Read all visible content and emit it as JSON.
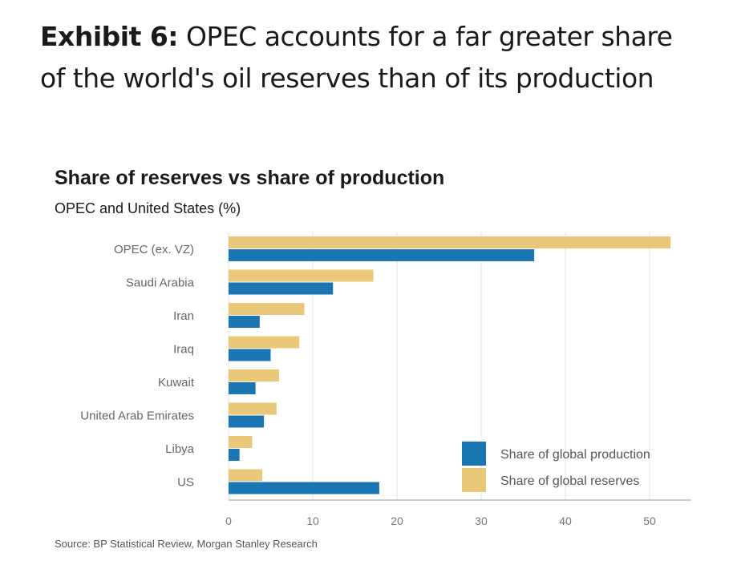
{
  "exhibit": {
    "lead": "Exhibit 6:",
    "text": " OPEC accounts for a far greater share of the world's oil reserves than of its production"
  },
  "source": "Source: BP Statistical Review, Morgan Stanley Research",
  "colors": {
    "production": "#1a75b3",
    "reserves": "#eac87a",
    "grid": "#e3e3e3",
    "axis": "#999999"
  },
  "chart_data": {
    "type": "bar",
    "orientation": "horizontal",
    "title": "Share of reserves vs share of production",
    "subtitle": "OPEC and United States (%)",
    "categories": [
      "OPEC (ex. VZ)",
      "Saudi Arabia",
      "Iran",
      "Iraq",
      "Kuwait",
      "United Arab Emirates",
      "Libya",
      "US"
    ],
    "series": [
      {
        "name": "Share of global reserves",
        "values": [
          52.5,
          17.2,
          9.0,
          8.4,
          6.0,
          5.7,
          2.8,
          4.0
        ]
      },
      {
        "name": "Share of global production",
        "values": [
          36.3,
          12.4,
          3.7,
          5.0,
          3.2,
          4.2,
          1.3,
          17.9
        ]
      }
    ],
    "xlim": [
      0,
      55
    ],
    "xticks": [
      0,
      10,
      20,
      30,
      40,
      50
    ],
    "grid": true,
    "legend": {
      "position": "bottom-right",
      "order": [
        "Share of global production",
        "Share of global reserves"
      ]
    }
  }
}
